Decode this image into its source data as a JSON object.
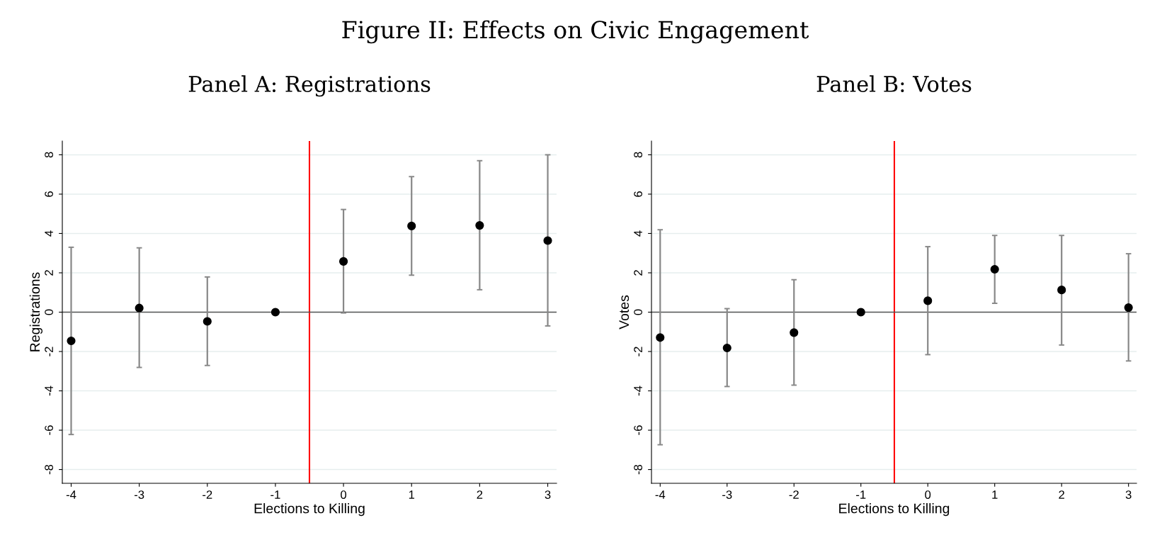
{
  "chart_data": [
    {
      "type": "scatter",
      "title": "Panel A: Registrations",
      "annotations": [
        "Figure II: Effects on Civic Engagement"
      ],
      "xlabel": "Elections to Killing",
      "ylabel": "Registrations",
      "x": [
        -4,
        -3,
        -2,
        -1,
        0,
        1,
        2,
        3
      ],
      "series": [
        {
          "color": "#000000",
          "values": [
            -1.46,
            0.21,
            -0.47,
            0,
            2.58,
            4.38,
            4.41,
            3.64
          ],
          "errors": [
            [
              -6.22,
              3.3
            ],
            [
              -2.81,
              3.27
            ],
            [
              -2.71,
              1.79
            ],
            null,
            [
              -0.04,
              5.22
            ],
            [
              1.88,
              6.89
            ],
            [
              1.14,
              7.7
            ],
            [
              -0.7,
              8.0
            ]
          ]
        }
      ],
      "xlim": [
        -4.13,
        3.13
      ],
      "ylim": [
        -8.7,
        8.7
      ],
      "xticks": [
        -4,
        -3,
        -2,
        -1,
        0,
        1,
        2,
        3
      ],
      "yticks": [
        -8,
        -6,
        -4,
        -2,
        0,
        2,
        4,
        6,
        8
      ],
      "ref_lines": [
        {
          "axis": "x",
          "value": -0.5,
          "color": "#ff0000"
        },
        {
          "axis": "y",
          "value": 0,
          "color": "#555555"
        }
      ],
      "grid": "y",
      "marker": "circle",
      "legend": false
    },
    {
      "type": "scatter",
      "title": "Panel B: Votes",
      "xlabel": "Elections to Killing",
      "ylabel": "Votes",
      "x": [
        -4,
        -3,
        -2,
        -1,
        0,
        1,
        2,
        3
      ],
      "series": [
        {
          "color": "#000000",
          "values": [
            -1.29,
            -1.82,
            -1.04,
            0,
            0.58,
            2.18,
            1.13,
            0.23
          ],
          "errors": [
            [
              -6.74,
              4.19
            ],
            [
              -3.78,
              0.18
            ],
            [
              -3.71,
              1.65
            ],
            null,
            [
              -2.16,
              3.33
            ],
            [
              0.45,
              3.9
            ],
            [
              -1.67,
              3.9
            ],
            [
              -2.48,
              2.97
            ]
          ]
        }
      ],
      "xlim": [
        -4.13,
        3.12
      ],
      "ylim": [
        -8.7,
        8.7
      ],
      "xticks": [
        -4,
        -3,
        -2,
        -1,
        0,
        1,
        2,
        3
      ],
      "yticks": [
        -8,
        -6,
        -4,
        -2,
        0,
        2,
        4,
        6,
        8
      ],
      "ref_lines": [
        {
          "axis": "x",
          "value": -0.5,
          "color": "#ff0000"
        },
        {
          "axis": "y",
          "value": 0,
          "color": "#555555"
        }
      ],
      "grid": "y",
      "marker": "circle",
      "legend": false
    }
  ]
}
